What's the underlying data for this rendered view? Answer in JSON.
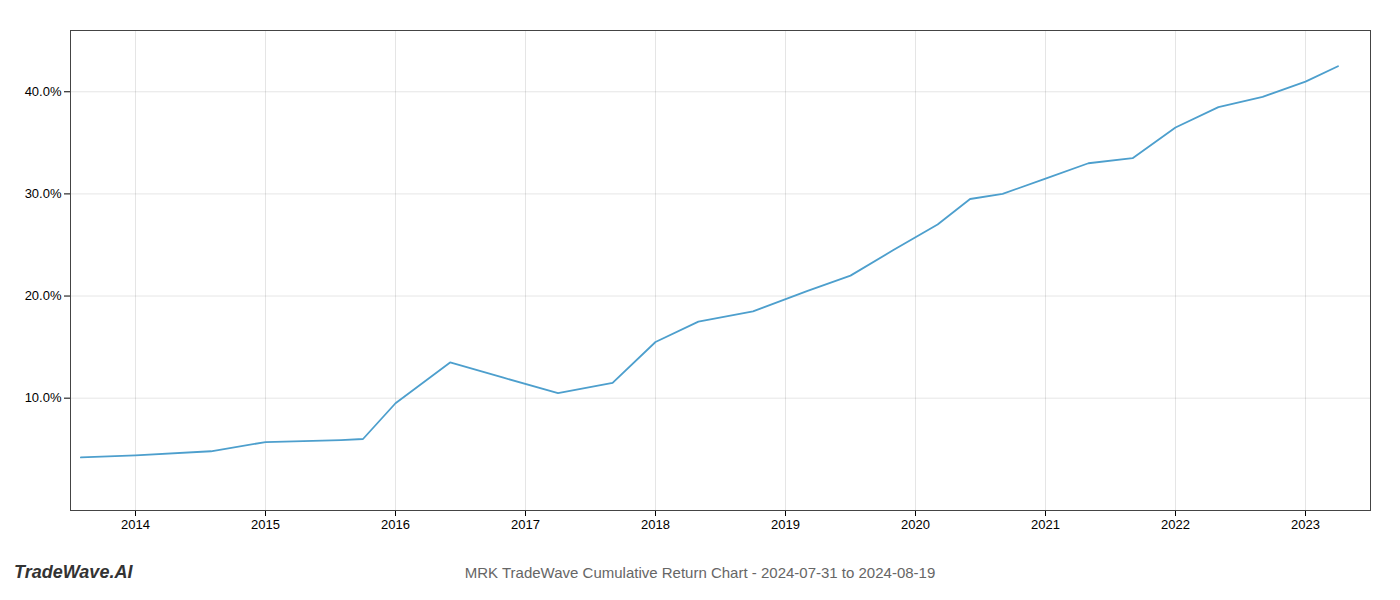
{
  "chart_data": {
    "type": "line",
    "title": "MRK TradeWave Cumulative Return Chart - 2024-07-31 to 2024-08-19",
    "annotations": [
      "TradeWave.AI"
    ],
    "x": [
      2013.58,
      2014.0,
      2014.58,
      2015.0,
      2015.58,
      2015.75,
      2016.0,
      2016.42,
      2016.83,
      2017.25,
      2017.67,
      2018.0,
      2018.33,
      2018.75,
      2019.17,
      2019.5,
      2019.83,
      2020.17,
      2020.42,
      2020.67,
      2021.0,
      2021.33,
      2021.67,
      2022.0,
      2022.33,
      2022.67,
      2023.0,
      2023.25
    ],
    "values": [
      4.2,
      4.4,
      4.8,
      5.7,
      5.9,
      6.0,
      9.5,
      13.5,
      12.0,
      10.5,
      11.5,
      15.5,
      17.5,
      18.5,
      20.5,
      22.0,
      24.5,
      27.0,
      29.5,
      30.0,
      31.5,
      33.0,
      33.5,
      36.5,
      38.5,
      39.5,
      41.0,
      42.5
    ],
    "color": "#4d9fcd",
    "xlim": [
      2013.5,
      2023.5
    ],
    "xticks": [
      2014,
      2015,
      2016,
      2017,
      2018,
      2019,
      2020,
      2021,
      2022,
      2023
    ],
    "ylim": [
      -1,
      46
    ],
    "yticks": [
      {
        "value": 10.0,
        "label": "10.0%"
      },
      {
        "value": 20.0,
        "label": "20.0%"
      },
      {
        "value": 30.0,
        "label": "30.0%"
      },
      {
        "value": 40.0,
        "label": "40.0%"
      }
    ],
    "grid": true
  }
}
